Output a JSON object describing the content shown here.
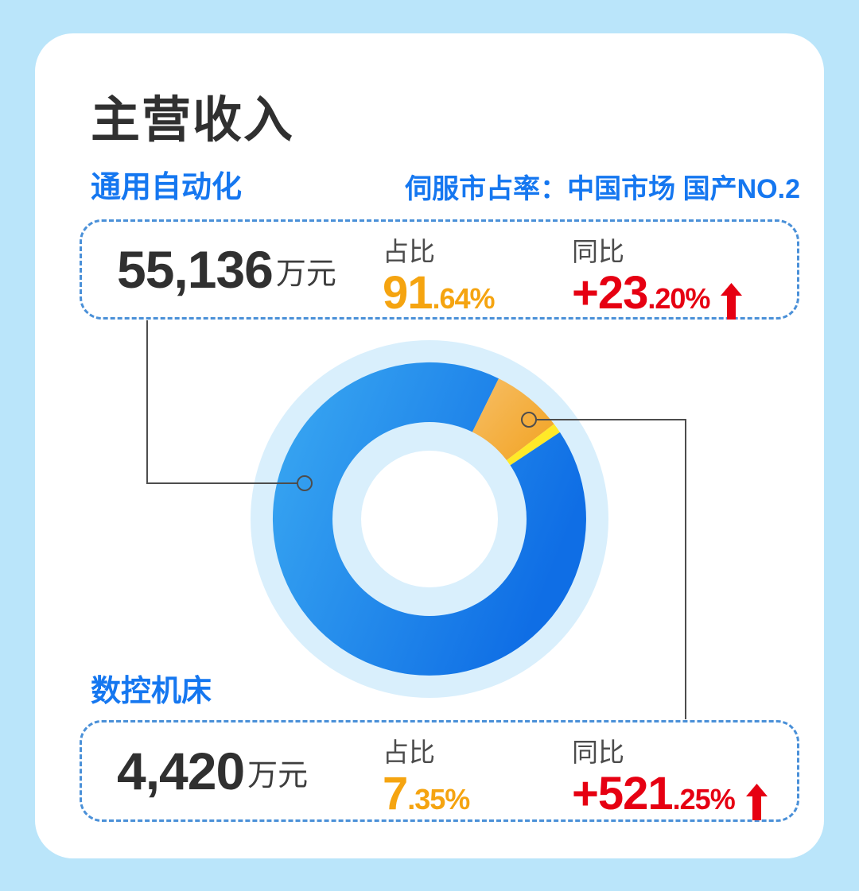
{
  "page": {
    "title": "主营收入"
  },
  "header": {
    "market_note": "伺服市占率：中国市场 国产NO.2"
  },
  "cards": {
    "general_automation": {
      "name": "通用自动化",
      "revenue": "55,136",
      "revenue_unit": "万元",
      "share_label": "占比",
      "share_main": "91",
      "share_small": ".64%",
      "yoy_label": "同比",
      "yoy_main": "+23",
      "yoy_small": ".20%"
    },
    "cnc_machine": {
      "name": "数控机床",
      "revenue": "4,420",
      "revenue_unit": "万元",
      "share_label": "占比",
      "share_main": "7",
      "share_small": ".35%",
      "yoy_label": "同比",
      "yoy_main": "+521",
      "yoy_small": ".25%"
    }
  },
  "colors": {
    "accent-blue": "#1577F0",
    "orange": "#F5A410",
    "red": "#E60012",
    "dash-blue": "#4A90D8",
    "bg": "#BAE5FA",
    "halo": "#D9EFFC",
    "text-dark": "#303030",
    "label-gray": "#4C4C4C"
  },
  "chart_data": {
    "type": "pie",
    "title": "主营收入",
    "unit": "%",
    "slices": [
      {
        "name": "通用自动化",
        "value": 91.64,
        "revenue_wan_yuan": 55136,
        "yoy_percent": 23.2,
        "color": "#3BAAF2",
        "color2": "#0F6EE5"
      },
      {
        "name": "数控机床",
        "value": 7.35,
        "revenue_wan_yuan": 4420,
        "yoy_percent": 521.25,
        "color": "#F8C679",
        "color2": "#F0990A"
      },
      {
        "name": "",
        "value": 1.01,
        "color": "#FFE928"
      }
    ],
    "layout": {
      "donut": true,
      "start_angle_deg": 56.3,
      "inner_radius_ratio": 0.62,
      "legend": "none",
      "labels": "callout cards connected by leader lines",
      "halo_ring": true
    }
  }
}
